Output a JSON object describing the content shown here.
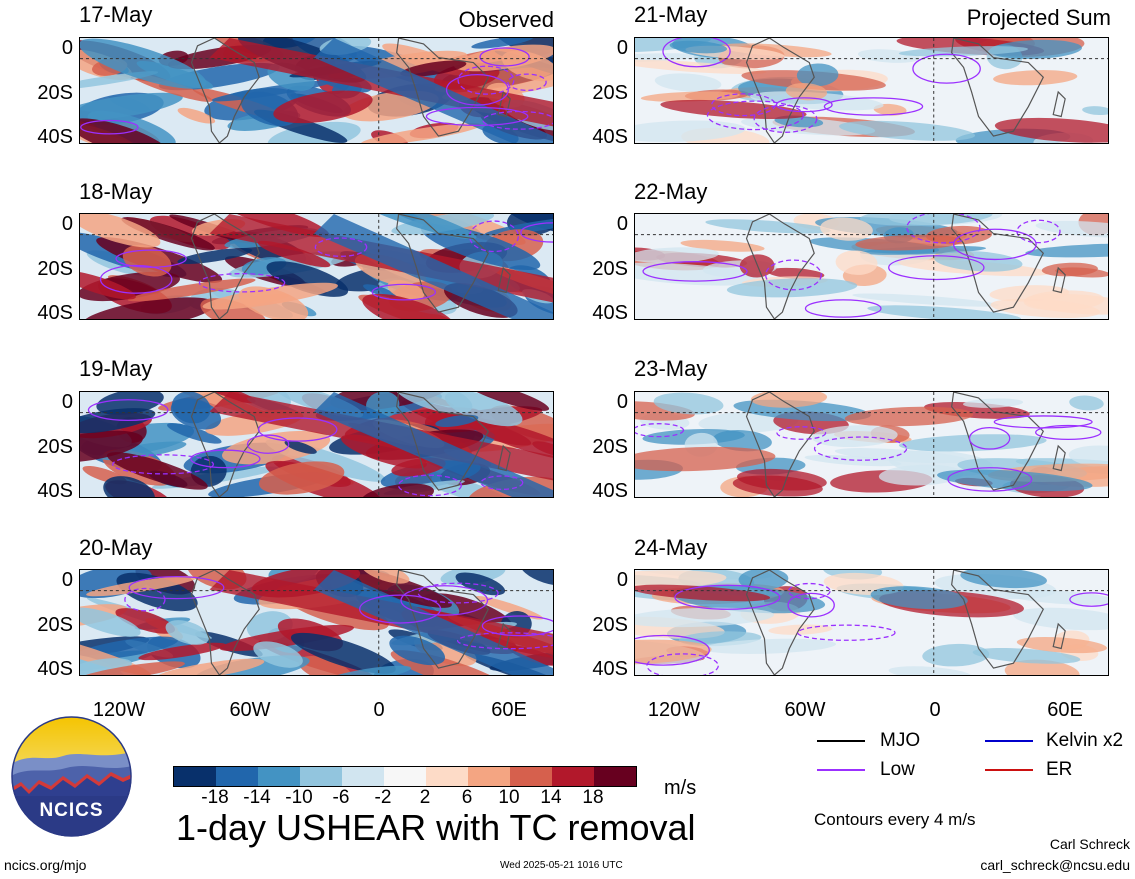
{
  "panels_observed": {
    "label": "Observed",
    "dates": [
      "17-May",
      "18-May",
      "19-May",
      "20-May"
    ]
  },
  "panels_projected": {
    "label": "Projected Sum",
    "dates": [
      "21-May",
      "22-May",
      "23-May",
      "24-May"
    ]
  },
  "axes": {
    "lat_labels": [
      "0",
      "20S",
      "40S"
    ],
    "lon_labels": [
      "120W",
      "60W",
      "0",
      "60E"
    ]
  },
  "colorbar": {
    "labels": [
      "-18",
      "-14",
      "-10",
      "-6",
      "-2",
      "2",
      "6",
      "10",
      "14",
      "18"
    ],
    "units": "m/s",
    "colors": [
      "#08306b",
      "#2166ac",
      "#4393c3",
      "#92c5de",
      "#d1e5f0",
      "#f7f7f7",
      "#fddbc7",
      "#f4a582",
      "#d6604d",
      "#b2182b",
      "#67001f"
    ]
  },
  "legend": {
    "items": [
      {
        "label": "MJO",
        "color": "#000000"
      },
      {
        "label": "Kelvin x2",
        "color": "#0000cc"
      },
      {
        "label": "Low",
        "color": "#9b30ff"
      },
      {
        "label": "ER",
        "color": "#cc1111"
      }
    ],
    "note": "Contours every 4 m/s"
  },
  "title": "1-day USHEAR with TC removal",
  "logo_text": "NCICS",
  "footer": {
    "url": "ncics.org/mjo",
    "timestamp": "Wed 2025-05-21 1016 UTC",
    "author": "Carl Schreck",
    "email": "carl_schreck@ncsu.edu"
  }
}
